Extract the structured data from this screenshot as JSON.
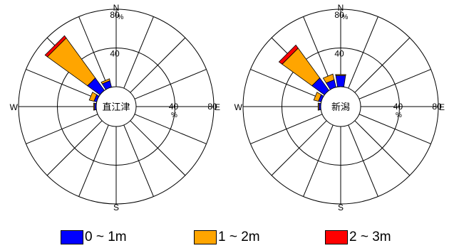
{
  "chart_data": [
    {
      "type": "wind-rose",
      "station": "直江津",
      "directions": [
        "N",
        "NNE",
        "NE",
        "ENE",
        "E",
        "ESE",
        "SE",
        "SSE",
        "S",
        "SSW",
        "SW",
        "WSW",
        "W",
        "WNW",
        "NW",
        "NNW"
      ],
      "axis_labels": {
        "north": "N",
        "south": "S",
        "east": "E",
        "west": "W"
      },
      "ring_values": [
        40,
        80
      ],
      "ring_labels": [
        "40",
        "80"
      ],
      "tick_unit": "%",
      "rmax": 80,
      "series": [
        {
          "name": "0 ~ 1m",
          "values": [
            0,
            0,
            0,
            0,
            0,
            0,
            0,
            0,
            0,
            0,
            0,
            0,
            2,
            3,
            16,
            7
          ]
        },
        {
          "name": "1 ~ 2m",
          "values": [
            0,
            0,
            0,
            0,
            0,
            0,
            0,
            0,
            0,
            0,
            0,
            0,
            1,
            5,
            51,
            2
          ]
        },
        {
          "name": "2 ~ 3m",
          "values": [
            0,
            0,
            0,
            0,
            0,
            0,
            0,
            0,
            0,
            0,
            0,
            0,
            0,
            0,
            3,
            0
          ]
        }
      ]
    },
    {
      "type": "wind-rose",
      "station": "新潟",
      "directions": [
        "N",
        "NNE",
        "NE",
        "ENE",
        "E",
        "ESE",
        "SE",
        "SSE",
        "S",
        "SSW",
        "SW",
        "WSW",
        "W",
        "WNW",
        "NW",
        "NNW"
      ],
      "axis_labels": {
        "north": "N",
        "south": "S",
        "east": "E",
        "west": "W"
      },
      "ring_values": [
        40,
        80
      ],
      "ring_labels": [
        "40",
        "80"
      ],
      "tick_unit": "%",
      "rmax": 80,
      "series": [
        {
          "name": "0 ~ 1m",
          "values": [
            12,
            0,
            0,
            0,
            0,
            0,
            0,
            0,
            0,
            0,
            0,
            0,
            2,
            3,
            16,
            8
          ]
        },
        {
          "name": "1 ~ 2m",
          "values": [
            1,
            0,
            0,
            0,
            0,
            0,
            0,
            0,
            0,
            0,
            0,
            0,
            1,
            5,
            38,
            6
          ]
        },
        {
          "name": "2 ~ 3m",
          "values": [
            0,
            0,
            0,
            0,
            0,
            0,
            0,
            0,
            0,
            0,
            0,
            0,
            0,
            0,
            4,
            0
          ]
        }
      ]
    }
  ],
  "legend": [
    {
      "label": "0 ~ 1m",
      "color": "#0000ff"
    },
    {
      "label": "1 ~ 2m",
      "color": "#ffa500"
    },
    {
      "label": "2 ~ 3m",
      "color": "#ff0000"
    }
  ]
}
